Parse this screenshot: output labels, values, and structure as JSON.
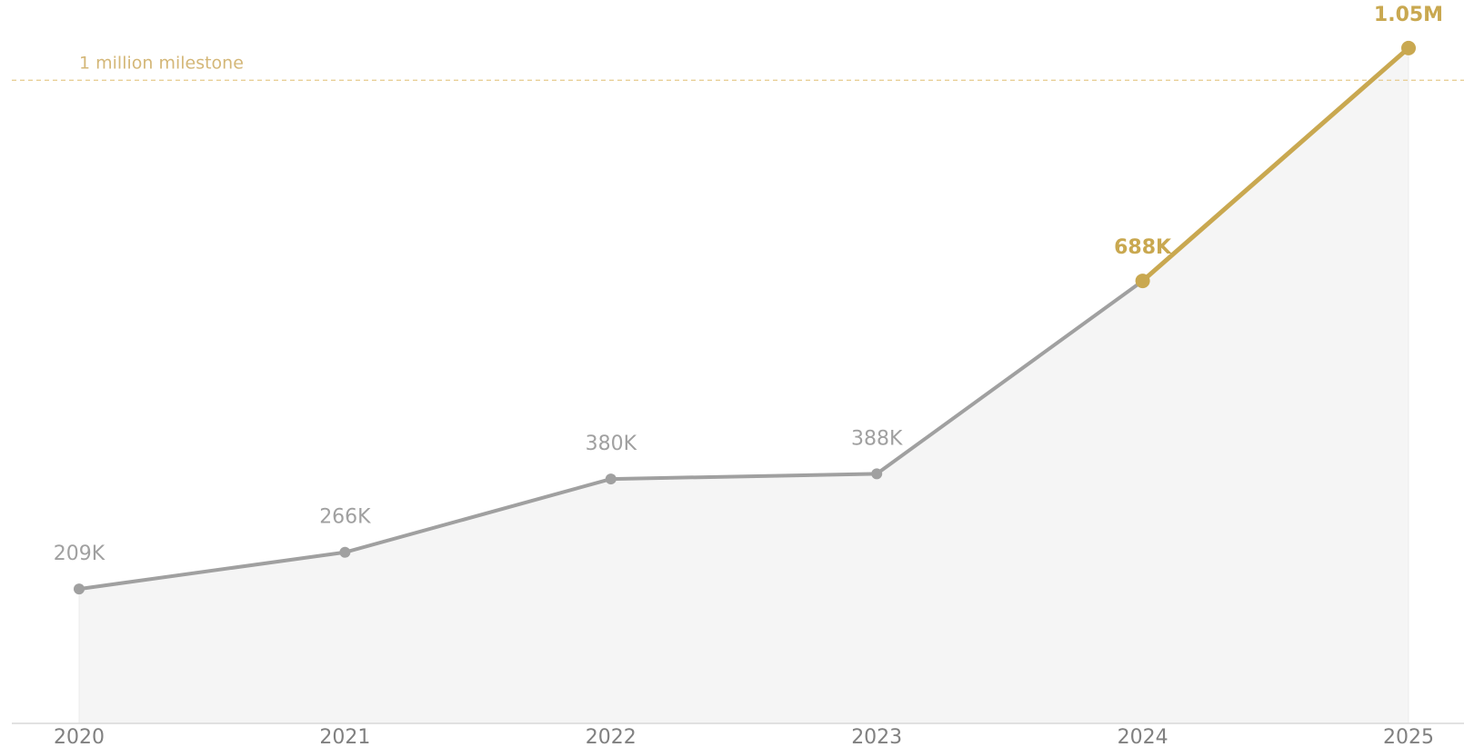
{
  "chart_data": {
    "type": "line",
    "categories": [
      "2020",
      "2021",
      "2022",
      "2023",
      "2024",
      "2025"
    ],
    "values": [
      209000,
      266000,
      380000,
      388000,
      688000,
      1050000
    ],
    "data_labels": [
      "209K",
      "266K",
      "380K",
      "388K",
      "688K",
      "1.05M"
    ],
    "highlight_from_index": 4,
    "reference_line": {
      "value": 1000000,
      "label": "1 million milestone"
    },
    "ylim": [
      0,
      1100000
    ],
    "title": "",
    "xlabel": "",
    "ylabel": "",
    "grid": false,
    "legend": "none",
    "colors": {
      "base_line": "#a0a0a0",
      "highlight": "#c9a850",
      "area_fill": "#f5f5f5",
      "reference": "#e8cf96",
      "reference_text": "#d4b778",
      "axis": "#d8d8d8",
      "tick_text": "#808080"
    }
  }
}
